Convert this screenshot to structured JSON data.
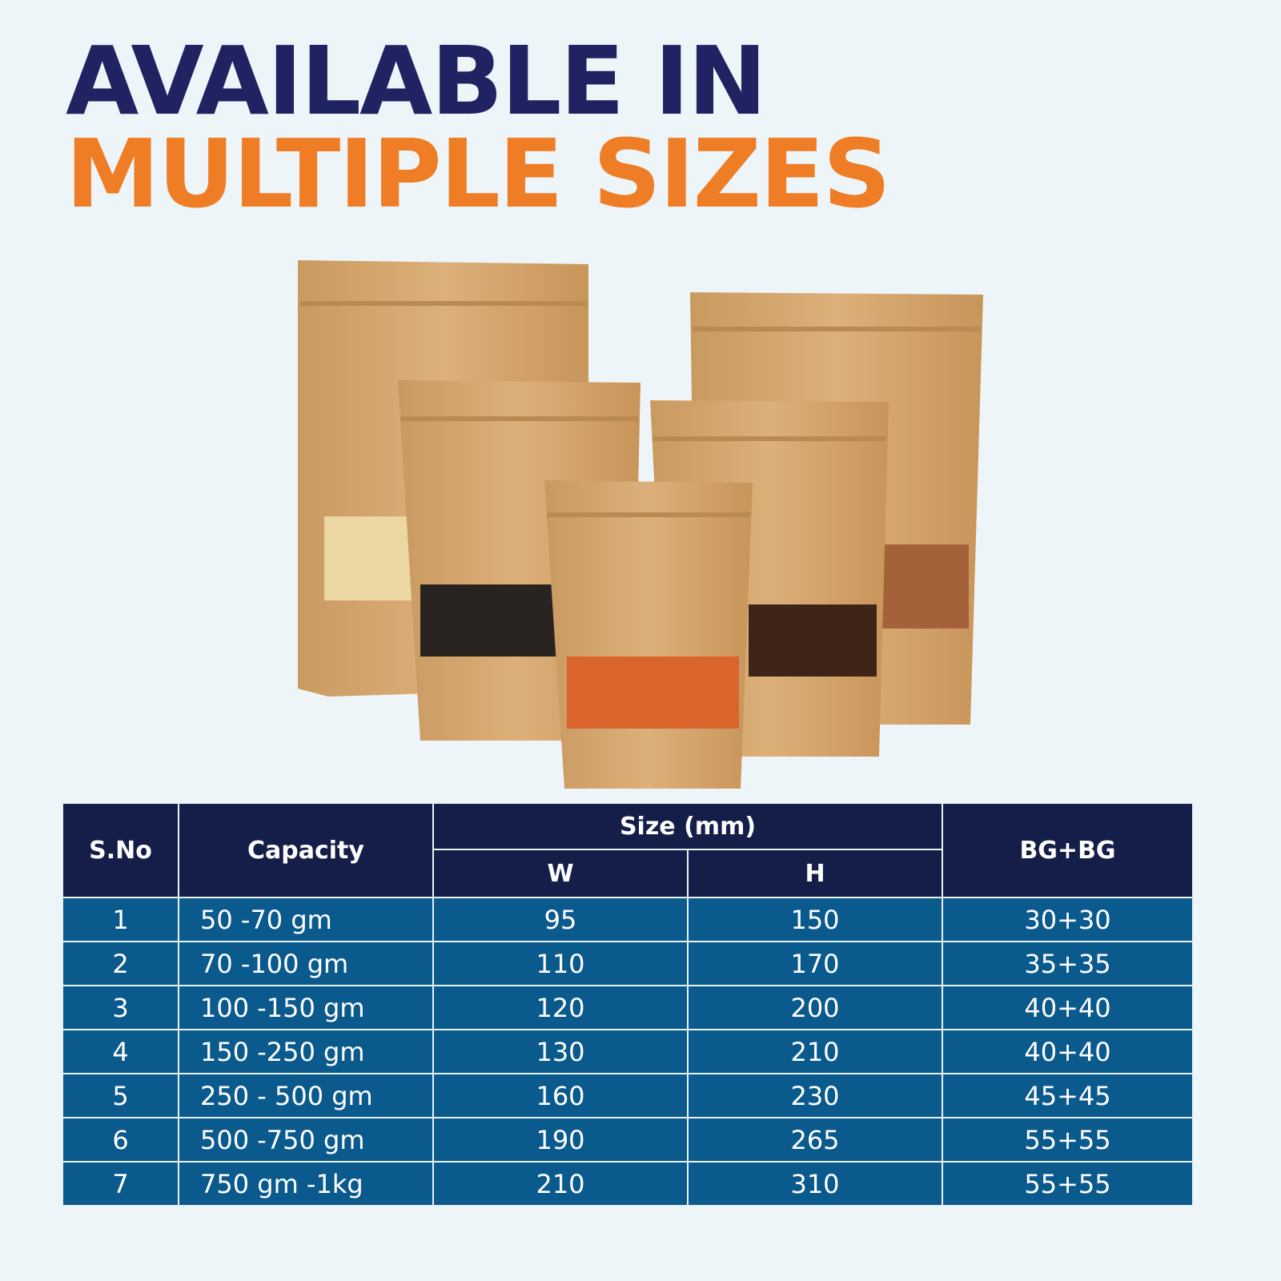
{
  "heading": {
    "line1": "AVAILABLE IN",
    "line2": "MULTIPLE SIZES"
  },
  "colors": {
    "heading_line1": "#1f2362",
    "heading_line2": "#ee7d26",
    "table_header": "#141e48",
    "table_row": "#0b5a8e",
    "background": "#eef5f8",
    "kraft": "#d8ab72"
  },
  "image": {
    "subject": "kraft stand-up zipper pouches with windows showing cashews, tea, red lentils, coffee beans, almonds"
  },
  "table": {
    "headers": {
      "sno": "S.No",
      "capacity": "Capacity",
      "size": "Size (mm)",
      "w": "W",
      "h": "H",
      "bgbg": "BG+BG"
    },
    "rows": [
      {
        "sno": "1",
        "capacity": "50 -70 gm",
        "w": "95",
        "h": "150",
        "bgbg": "30+30"
      },
      {
        "sno": "2",
        "capacity": "70 -100 gm",
        "w": "110",
        "h": "170",
        "bgbg": "35+35"
      },
      {
        "sno": "3",
        "capacity": "100 -150 gm",
        "w": "120",
        "h": "200",
        "bgbg": "40+40"
      },
      {
        "sno": "4",
        "capacity": "150 -250 gm",
        "w": "130",
        "h": "210",
        "bgbg": "40+40"
      },
      {
        "sno": "5",
        "capacity": "250 - 500 gm",
        "w": "160",
        "h": "230",
        "bgbg": "45+45"
      },
      {
        "sno": "6",
        "capacity": "500 -750 gm",
        "w": "190",
        "h": "265",
        "bgbg": "55+55"
      },
      {
        "sno": "7",
        "capacity": "750 gm -1kg",
        "w": "210",
        "h": "310",
        "bgbg": "55+55"
      }
    ]
  }
}
